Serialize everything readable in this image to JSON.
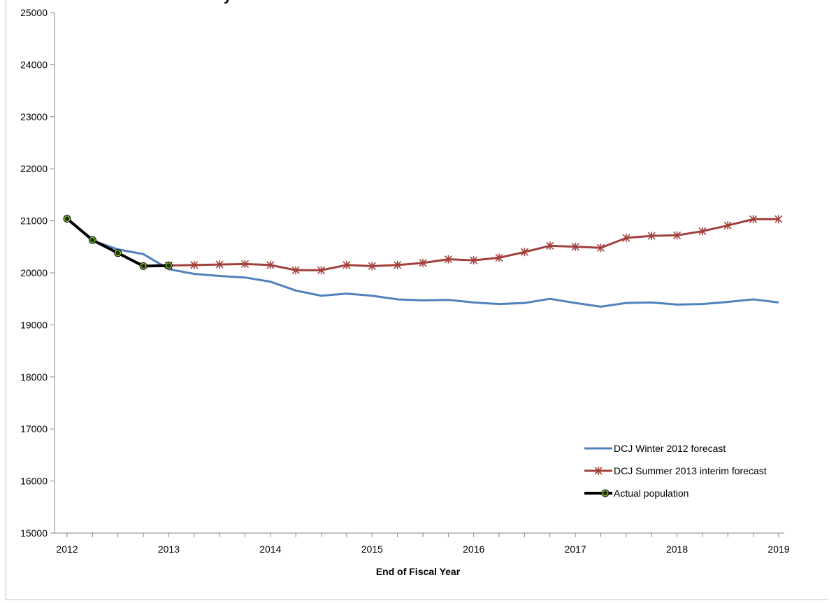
{
  "chart_data": {
    "type": "line",
    "title": "",
    "xlabel": "End of Fiscal Year",
    "ylabel": "",
    "ylim": [
      15000,
      25000
    ],
    "yticks": [
      15000,
      16000,
      17000,
      18000,
      19000,
      20000,
      21000,
      22000,
      23000,
      24000,
      25000
    ],
    "xtick_labels": [
      "2012",
      "2013",
      "2014",
      "2015",
      "2016",
      "2017",
      "2018",
      "2019"
    ],
    "legend_position": "bottom-right",
    "grid": false,
    "series": [
      {
        "name": "DCJ Winter 2012 forecast",
        "color": "#4f81bd",
        "marker": "none",
        "start_index": 0,
        "values": [
          21040,
          20620,
          20450,
          20360,
          20070,
          19980,
          19940,
          19910,
          19830,
          19660,
          19560,
          19600,
          19560,
          19490,
          19470,
          19480,
          19430,
          19400,
          19420,
          19500,
          19420,
          19350,
          19420,
          19430,
          19390,
          19400,
          19440,
          19490,
          19430
        ]
      },
      {
        "name": "DCJ Summer 2013 interim forecast",
        "color": "#a2403b",
        "marker": "star",
        "start_index": 4,
        "values": [
          20140,
          20150,
          20160,
          20170,
          20150,
          20050,
          20050,
          20150,
          20130,
          20150,
          20190,
          20260,
          20240,
          20290,
          20400,
          20520,
          20500,
          20480,
          20670,
          20710,
          20720,
          20800,
          20910,
          21030,
          21030
        ]
      },
      {
        "name": "Actual population",
        "color": "#000000",
        "marker": "circle-yellowgreen",
        "start_index": 0,
        "values": [
          21040,
          20630,
          20380,
          20130,
          20140
        ]
      }
    ]
  }
}
